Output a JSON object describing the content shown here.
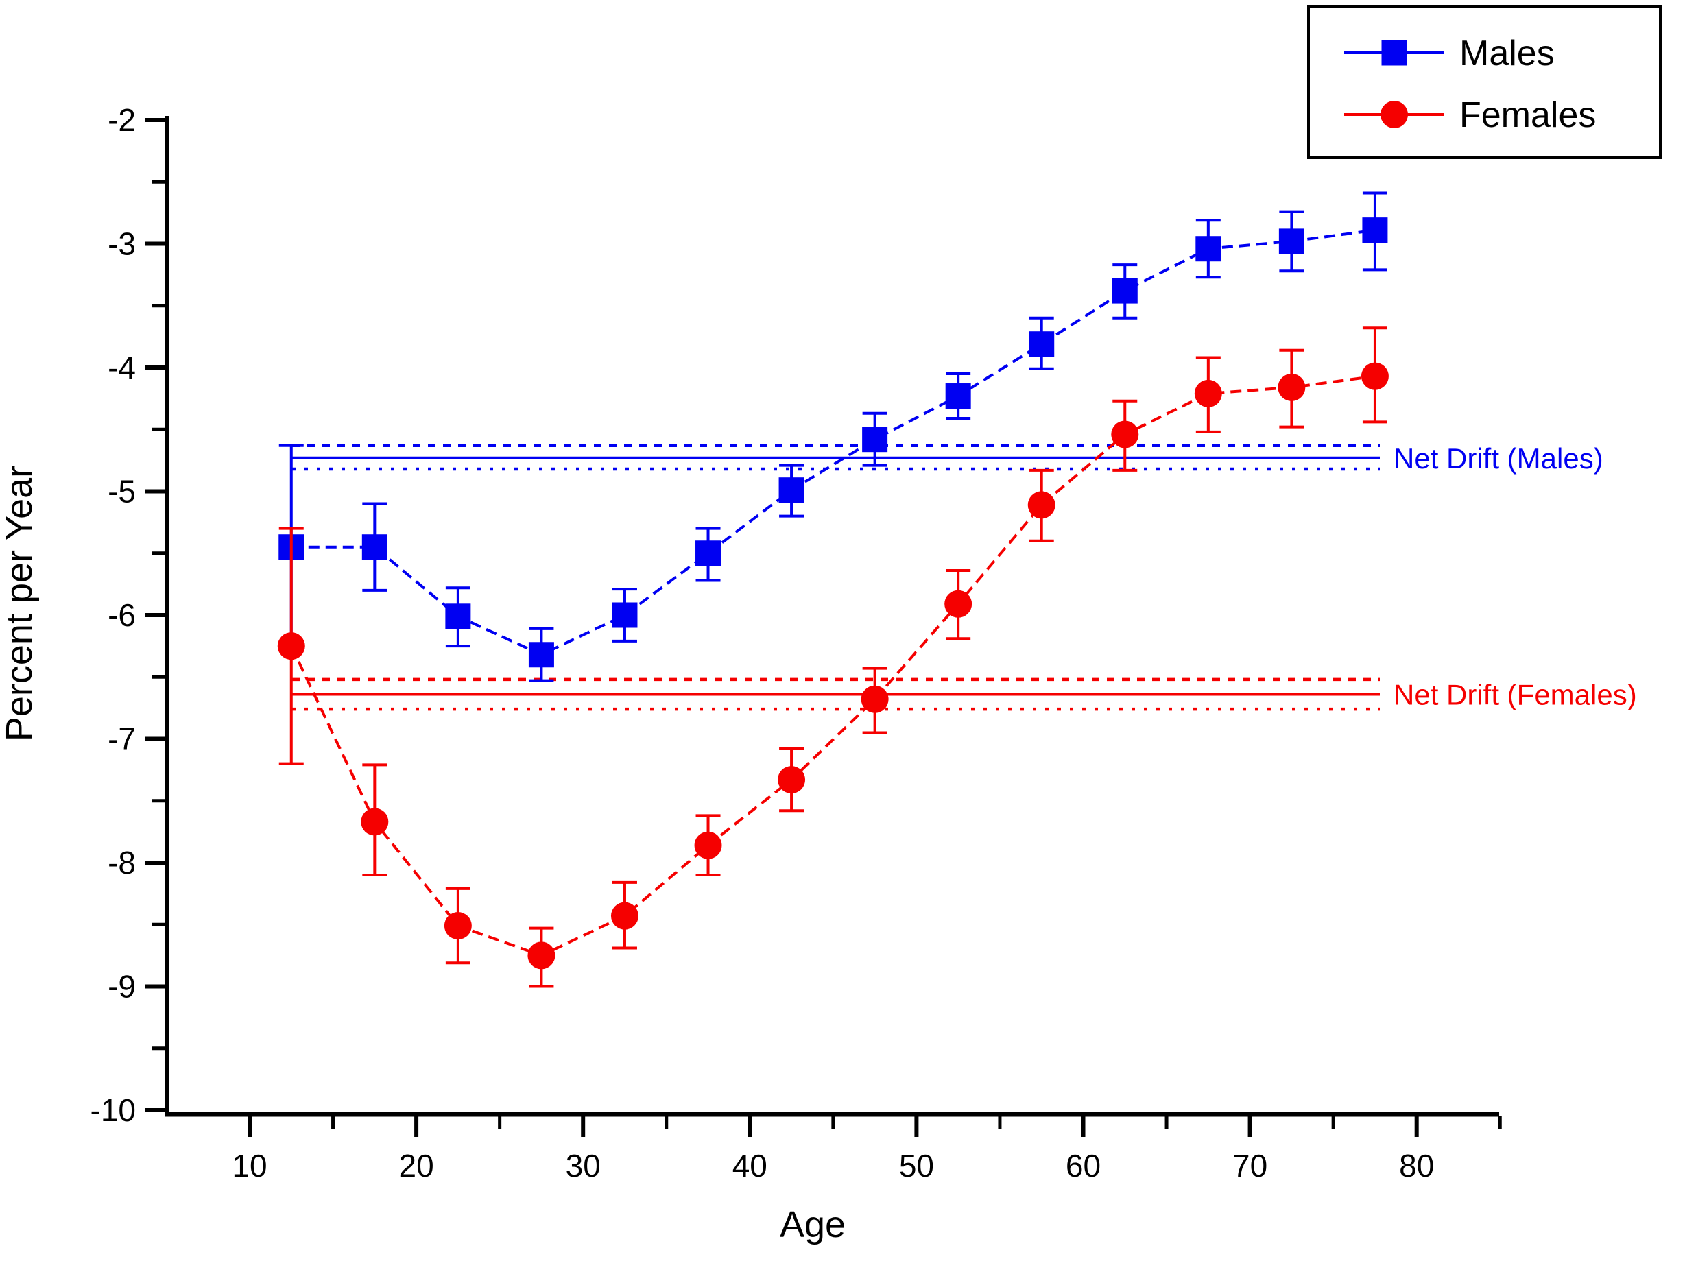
{
  "page": {
    "background": "#ffffff"
  },
  "chart_data": {
    "type": "line",
    "title": "",
    "xlabel": "Age",
    "ylabel": "Percent per Year",
    "xlim": [
      5,
      85.3
    ],
    "ylim": [
      -10.05,
      -2
    ],
    "grid": false,
    "legend_position": "top-right",
    "x_major_ticks": [
      10,
      20,
      30,
      40,
      50,
      60,
      70,
      80
    ],
    "x_minor_ticks": [
      15,
      25,
      35,
      45,
      55,
      65,
      75,
      85
    ],
    "y_major_ticks": [
      -2,
      -3,
      -4,
      -5,
      -6,
      -7,
      -8,
      -9,
      -10
    ],
    "y_minor_ticks": [
      -2.5,
      -3.5,
      -4.5,
      -5.5,
      -6.5,
      -7.5,
      -8.5,
      -9.5
    ],
    "x": [
      12.5,
      17.5,
      22.5,
      27.5,
      32.5,
      37.5,
      42.5,
      47.5,
      52.5,
      57.5,
      62.5,
      67.5,
      72.5,
      77.5
    ],
    "series": [
      {
        "name": "Males",
        "color": "#0000f2",
        "marker": "square",
        "values": [
          -5.45,
          -5.45,
          -6.01,
          -6.32,
          -6.0,
          -5.5,
          -4.99,
          -4.58,
          -4.23,
          -3.81,
          -3.38,
          -3.04,
          -2.98,
          -2.89
        ],
        "ci_low": [
          -6.25,
          -5.8,
          -6.25,
          -6.53,
          -6.21,
          -5.72,
          -5.2,
          -4.79,
          -4.41,
          -4.01,
          -3.6,
          -3.27,
          -3.22,
          -3.21
        ],
        "ci_high": [
          -4.63,
          -5.1,
          -5.78,
          -6.11,
          -5.79,
          -5.3,
          -4.79,
          -4.37,
          -4.05,
          -3.6,
          -3.17,
          -2.81,
          -2.74,
          -2.59
        ]
      },
      {
        "name": "Females",
        "color": "#f50000",
        "marker": "circle",
        "values": [
          -6.25,
          -7.67,
          -8.51,
          -8.75,
          -8.43,
          -7.86,
          -7.33,
          -6.68,
          -5.91,
          -5.11,
          -4.54,
          -4.21,
          -4.16,
          -4.07
        ],
        "ci_low": [
          -7.2,
          -8.1,
          -8.81,
          -9.0,
          -8.69,
          -8.1,
          -7.58,
          -6.95,
          -6.19,
          -5.4,
          -4.83,
          -4.52,
          -4.48,
          -4.44
        ],
        "ci_high": [
          -5.3,
          -7.21,
          -8.21,
          -8.53,
          -8.16,
          -7.62,
          -7.08,
          -6.43,
          -5.64,
          -4.83,
          -4.27,
          -3.92,
          -3.86,
          -3.68
        ]
      }
    ],
    "reference_lines": [
      {
        "name": "Net Drift (Males)",
        "color": "#0000f2",
        "value": -4.73,
        "ci_low": -4.82,
        "ci_high": -4.63
      },
      {
        "name": "Net Drift (Females)",
        "color": "#f50000",
        "value": -6.64,
        "ci_low": -6.76,
        "ci_high": -6.52
      }
    ]
  },
  "legend": {
    "items": [
      {
        "label": "Males"
      },
      {
        "label": "Females"
      }
    ]
  }
}
